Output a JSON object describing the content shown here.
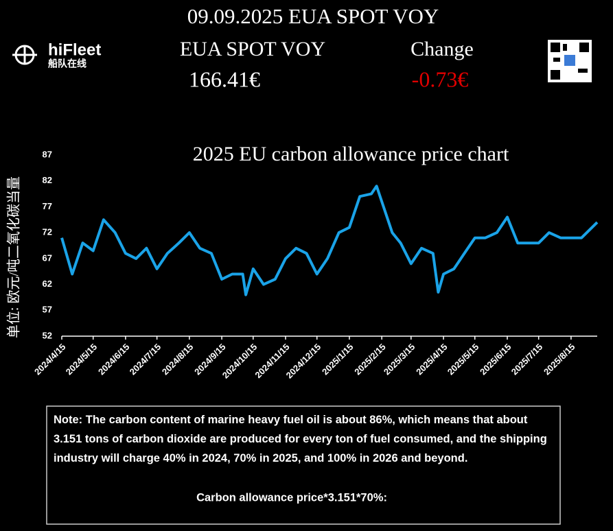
{
  "header": {
    "headline": "09.09.2025 EUA SPOT VOY",
    "logo_name": "hiFleet",
    "logo_sub": "船队在线",
    "price_label": "EUA SPOT VOY",
    "change_label": "Change",
    "price": "166.41€",
    "change": "-0.73€"
  },
  "chart_data": {
    "type": "line",
    "title": "2025 EU carbon allowance price chart",
    "y_label": "单位: 欧元/吨二氧化碳当量",
    "x": [
      "2024/4/15",
      "2024/4/25",
      "2024/5/5",
      "2024/5/15",
      "2024/5/25",
      "2024/6/5",
      "2024/6/15",
      "2024/6/25",
      "2024/7/5",
      "2024/7/15",
      "2024/7/25",
      "2024/8/5",
      "2024/8/15",
      "2024/8/25",
      "2024/9/5",
      "2024/9/15",
      "2024/9/25",
      "2024/10/5",
      "2024/10/8",
      "2024/10/15",
      "2024/10/25",
      "2024/11/5",
      "2024/11/15",
      "2024/11/25",
      "2024/12/5",
      "2024/12/15",
      "2024/12/25",
      "2025/1/5",
      "2025/1/15",
      "2025/1/25",
      "2025/2/5",
      "2025/2/10",
      "2025/2/15",
      "2025/2/25",
      "2025/3/5",
      "2025/3/15",
      "2025/3/25",
      "2025/4/5",
      "2025/4/10",
      "2025/4/15",
      "2025/4/25",
      "2025/5/5",
      "2025/5/15",
      "2025/5/25",
      "2025/6/5",
      "2025/6/15",
      "2025/6/25",
      "2025/7/5",
      "2025/7/15",
      "2025/7/25",
      "2025/8/5",
      "2025/8/15",
      "2025/8/25",
      "2025/9/9"
    ],
    "series": [
      {
        "color": "#1aa3e8",
        "values": [
          71,
          64,
          70,
          68.5,
          74.5,
          72,
          68,
          67,
          69,
          65,
          68,
          70,
          72,
          69,
          68,
          63,
          64,
          64,
          60,
          65,
          62,
          63,
          67,
          69,
          68,
          64,
          67,
          72,
          73,
          79,
          79.5,
          81,
          78,
          72,
          70,
          66,
          69,
          68,
          60.5,
          64,
          65,
          68,
          71,
          71,
          72,
          75,
          70,
          70,
          70,
          72,
          71,
          71,
          71,
          74
        ]
      }
    ],
    "xlim": [
      "2024/4/15",
      "2025/9/9"
    ],
    "xticks": [
      "2024/4/15",
      "2024/5/15",
      "2024/6/15",
      "2024/7/15",
      "2024/8/15",
      "2024/9/15",
      "2024/10/15",
      "2024/11/15",
      "2024/12/15",
      "2025/1/15",
      "2025/2/15",
      "2025/3/15",
      "2025/4/15",
      "2025/5/15",
      "2025/6/15",
      "2025/7/15",
      "2025/8/15"
    ],
    "ylim": [
      52,
      87
    ],
    "yticks": [
      52,
      57,
      62,
      67,
      72,
      77,
      82,
      87
    ],
    "grid": false
  },
  "note": {
    "text": "Note: The carbon content of marine heavy fuel oil is about 86%, which means that about 3.151 tons of carbon dioxide are produced for every ton of fuel consumed, and the shipping industry will charge 40% in 2024, 70% in 2025, and 100% in 2026 and beyond.",
    "formula": "Carbon allowance price*3.151*70%:"
  }
}
